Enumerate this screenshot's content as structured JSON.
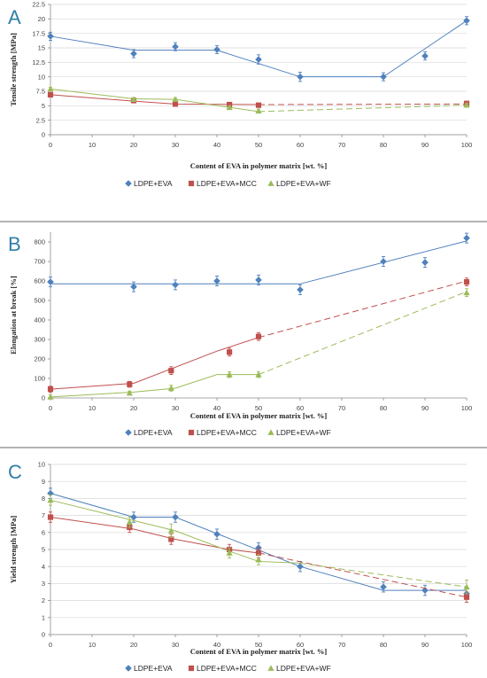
{
  "colors": {
    "LDPE+EVA": "#4f81bd",
    "LDPE+EVA+MCC": "#c0504d",
    "LDPE+EVA+WF": "#9bbb59",
    "panel_letter": "#2f7fa8"
  },
  "chart_data": [
    {
      "type": "line",
      "panel": "A",
      "xlabel": "Content of EVA in polymer matrix [wt. %]",
      "ylabel": "Tensile strength [MPa]",
      "xlim": [
        0,
        100
      ],
      "ylim": [
        0,
        22.5
      ],
      "xticks": [
        "0",
        "10",
        "20",
        "30",
        "40",
        "50",
        "60",
        "70",
        "80",
        "90",
        "100"
      ],
      "yticks": [
        "0",
        "2.5",
        "5",
        "7.5",
        "10",
        "12.5",
        "15",
        "17.5",
        "20",
        "22.5"
      ],
      "grid": "horizontal",
      "legend": "bottom",
      "series": [
        {
          "name": "LDPE+EVA",
          "marker": "diamond",
          "x": [
            0,
            20,
            30,
            40,
            50,
            60,
            80,
            90,
            100
          ],
          "y": [
            17,
            14,
            15.2,
            14.7,
            13,
            10,
            10,
            13.6,
            19.7
          ],
          "err": [
            0.7,
            0.7,
            0.7,
            0.7,
            0.8,
            0.8,
            0.7,
            0.7,
            0.7
          ],
          "fit": {
            "solid": [
              [
                0,
                17
              ],
              [
                20,
                14.6
              ],
              [
                40,
                14.6
              ],
              [
                60,
                10
              ],
              [
                80,
                10
              ],
              [
                100,
                19.7
              ]
            ],
            "dashed": []
          }
        },
        {
          "name": "LDPE+EVA+MCC",
          "marker": "square",
          "x": [
            0,
            20,
            30,
            43,
            50,
            100
          ],
          "y": [
            6.9,
            5.9,
            5.3,
            5.2,
            5.1,
            5.4
          ],
          "err": [
            0.3,
            0.3,
            0.3,
            0.3,
            0.3,
            0.3
          ],
          "fit": {
            "solid": [
              [
                0,
                6.9
              ],
              [
                20,
                5.8
              ],
              [
                30,
                5.3
              ],
              [
                50,
                5.2
              ]
            ],
            "dashed": [
              [
                50,
                5.2
              ],
              [
                100,
                5.3
              ]
            ]
          }
        },
        {
          "name": "LDPE+EVA+WF",
          "marker": "triangle",
          "x": [
            0,
            20,
            30,
            43,
            50,
            100
          ],
          "y": [
            7.9,
            6.1,
            6.1,
            4.7,
            4.1,
            5.1
          ],
          "err": [
            0.3,
            0.3,
            0.3,
            0.3,
            0.3,
            0.3
          ],
          "fit": {
            "solid": [
              [
                0,
                7.9
              ],
              [
                20,
                6.2
              ],
              [
                30,
                6.1
              ],
              [
                50,
                4
              ]
            ],
            "dashed": [
              [
                50,
                4
              ],
              [
                100,
                5.1
              ]
            ]
          }
        }
      ]
    },
    {
      "type": "line",
      "panel": "B",
      "xlabel": "Content of EVA in polymer matrix [wt. %]",
      "ylabel": "Elongation at break [%]",
      "xlim": [
        0,
        100
      ],
      "ylim": [
        0,
        850
      ],
      "xticks": [
        "0",
        "10",
        "20",
        "30",
        "40",
        "50",
        "60",
        "70",
        "80",
        "90",
        "100"
      ],
      "yticks": [
        "0",
        "100",
        "200",
        "300",
        "400",
        "500",
        "600",
        "700",
        "800"
      ],
      "grid": "none",
      "legend": "bottom",
      "series": [
        {
          "name": "LDPE+EVA",
          "marker": "diamond",
          "x": [
            0,
            20,
            30,
            40,
            50,
            60,
            80,
            90,
            100
          ],
          "y": [
            595,
            570,
            580,
            600,
            605,
            555,
            700,
            695,
            820
          ],
          "err": [
            25,
            25,
            25,
            25,
            25,
            25,
            25,
            25,
            25
          ],
          "fit": {
            "solid": [
              [
                0,
                585
              ],
              [
                60,
                585
              ],
              [
                100,
                805
              ]
            ],
            "dashed": []
          }
        },
        {
          "name": "LDPE+EVA+MCC",
          "marker": "square",
          "x": [
            0,
            19,
            29,
            43,
            50,
            100
          ],
          "y": [
            45,
            70,
            140,
            235,
            315,
            595
          ],
          "err": [
            15,
            15,
            20,
            20,
            20,
            20
          ],
          "fit": {
            "solid": [
              [
                0,
                45
              ],
              [
                20,
                75
              ],
              [
                40,
                240
              ],
              [
                50,
                310
              ]
            ],
            "dashed": [
              [
                50,
                310
              ],
              [
                100,
                600
              ]
            ]
          }
        },
        {
          "name": "LDPE+EVA+WF",
          "marker": "triangle",
          "x": [
            0,
            19,
            29,
            43,
            50,
            100
          ],
          "y": [
            5,
            25,
            50,
            120,
            120,
            540
          ],
          "err": [
            10,
            10,
            15,
            15,
            15,
            20
          ],
          "fit": {
            "solid": [
              [
                0,
                5
              ],
              [
                20,
                30
              ],
              [
                30,
                50
              ],
              [
                40,
                120
              ],
              [
                50,
                120
              ]
            ],
            "dashed": [
              [
                50,
                120
              ],
              [
                100,
                545
              ]
            ]
          }
        }
      ]
    },
    {
      "type": "line",
      "panel": "C",
      "xlabel": "Content of EVA in polymer matrix [wt. %]",
      "ylabel": "Yield strength [MPa]",
      "xlim": [
        0,
        100
      ],
      "ylim": [
        0,
        10
      ],
      "xticks": [
        "0",
        "10",
        "20",
        "30",
        "40",
        "50",
        "60",
        "70",
        "80",
        "90",
        "100"
      ],
      "yticks": [
        "0",
        "1",
        "2",
        "3",
        "4",
        "5",
        "6",
        "7",
        "8",
        "9",
        "10"
      ],
      "grid": "horizontal",
      "legend": "bottom",
      "series": [
        {
          "name": "LDPE+EVA",
          "marker": "diamond",
          "x": [
            0,
            20,
            30,
            40,
            50,
            60,
            80,
            90,
            100
          ],
          "y": [
            8.3,
            6.9,
            6.9,
            5.9,
            5.1,
            4,
            2.8,
            2.6,
            2.4
          ],
          "err": [
            0.3,
            0.3,
            0.3,
            0.3,
            0.3,
            0.3,
            0.3,
            0.3,
            0.3
          ],
          "fit": {
            "solid": [
              [
                0,
                8.3
              ],
              [
                20,
                6.9
              ],
              [
                30,
                6.9
              ],
              [
                60,
                4
              ],
              [
                80,
                2.6
              ],
              [
                100,
                2.6
              ]
            ],
            "dashed": []
          }
        },
        {
          "name": "LDPE+EVA+MCC",
          "marker": "square",
          "x": [
            0,
            19,
            29,
            43,
            50,
            100
          ],
          "y": [
            6.9,
            6.3,
            5.6,
            5,
            4.8,
            2.2
          ],
          "err": [
            0.3,
            0.3,
            0.3,
            0.3,
            0.3,
            0.3
          ],
          "fit": {
            "solid": [
              [
                0,
                6.9
              ],
              [
                20,
                6.2
              ],
              [
                30,
                5.6
              ],
              [
                43,
                5
              ],
              [
                50,
                4.8
              ]
            ],
            "dashed": [
              [
                50,
                4.8
              ],
              [
                100,
                2.2
              ]
            ]
          }
        },
        {
          "name": "LDPE+EVA+WF",
          "marker": "triangle",
          "x": [
            0,
            19,
            29,
            43,
            50,
            100
          ],
          "y": [
            7.9,
            6.6,
            6.1,
            4.8,
            4.4,
            2.8
          ],
          "err": [
            0.3,
            0.3,
            0.4,
            0.3,
            0.3,
            0.4
          ],
          "fit": {
            "solid": [
              [
                0,
                7.9
              ],
              [
                20,
                6.7
              ],
              [
                30,
                6.1
              ],
              [
                43,
                4.9
              ],
              [
                50,
                4.3
              ],
              [
                60,
                4.2
              ]
            ],
            "dashed": [
              [
                60,
                4.2
              ],
              [
                100,
                2.8
              ]
            ]
          }
        }
      ]
    }
  ]
}
